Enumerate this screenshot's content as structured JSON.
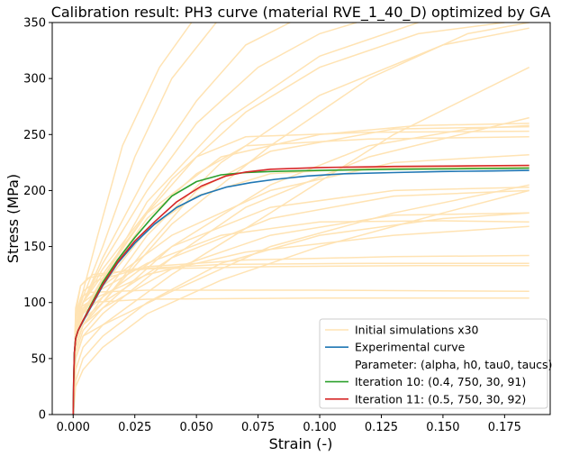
{
  "chart_data": {
    "type": "line",
    "title": "Calibration result: PH3 curve (material RVE_1_40_D) optimized by GA",
    "xlabel": "Strain (-)",
    "ylabel": "Stress (MPa)",
    "xlim": [
      -0.0085,
      0.1935
    ],
    "ylim": [
      0,
      350
    ],
    "xticks": [
      "0.000",
      "0.025",
      "0.050",
      "0.075",
      "0.100",
      "0.125",
      "0.150",
      "0.175"
    ],
    "yticks": [
      "0",
      "50",
      "100",
      "150",
      "200",
      "250",
      "300",
      "350"
    ],
    "grid": false,
    "legend_position": "lower-right",
    "legend": [
      {
        "label": "Initial simulations x30",
        "color": "#ffe3b3"
      },
      {
        "label": "Experimental curve",
        "color": "#1f77b4"
      },
      {
        "label": "Parameter: (alpha, h0, tau0, taucs)",
        "color": ""
      },
      {
        "label": "Iteration 10: (0.4, 750, 30, 91)",
        "color": "#2ca02c"
      },
      {
        "label": "Iteration 11: (0.5, 750, 30, 92)",
        "color": "#d62728"
      }
    ],
    "series": [
      {
        "name": "Experimental curve",
        "color": "#1f77b4",
        "x": [
          0,
          0.0002,
          0.0005,
          0.001,
          0.002,
          0.004,
          0.007,
          0.012,
          0.018,
          0.025,
          0.033,
          0.042,
          0.052,
          0.062,
          0.072,
          0.082,
          0.095,
          0.11,
          0.13,
          0.15,
          0.17,
          0.185
        ],
        "y": [
          0,
          30,
          55,
          68,
          75,
          83,
          95,
          115,
          135,
          153,
          170,
          185,
          196,
          203,
          207,
          210,
          213,
          215,
          216,
          217,
          217.5,
          218
        ]
      },
      {
        "name": "Iteration 10: (0.4, 750, 30, 91)",
        "color": "#2ca02c",
        "x": [
          0,
          0.0002,
          0.0005,
          0.001,
          0.002,
          0.004,
          0.007,
          0.012,
          0.018,
          0.025,
          0.032,
          0.04,
          0.05,
          0.06,
          0.07,
          0.08,
          0.1,
          0.13,
          0.16,
          0.185
        ],
        "y": [
          0,
          30,
          55,
          68,
          75,
          84,
          97,
          118,
          138,
          158,
          176,
          195,
          208,
          214,
          216,
          217,
          218,
          219,
          219.5,
          220
        ]
      },
      {
        "name": "Iteration 11: (0.5, 750, 30, 92)",
        "color": "#d62728",
        "x": [
          0,
          0.0002,
          0.0005,
          0.001,
          0.002,
          0.004,
          0.007,
          0.012,
          0.018,
          0.025,
          0.033,
          0.042,
          0.052,
          0.062,
          0.07,
          0.08,
          0.1,
          0.13,
          0.16,
          0.185
        ],
        "y": [
          0,
          30,
          55,
          68,
          75,
          84,
          96,
          116,
          136,
          155,
          172,
          190,
          204,
          213,
          216.5,
          219,
          220.5,
          221.5,
          222,
          222.5
        ]
      }
    ],
    "initial_simulations": {
      "color": "#ffe3b3",
      "curves": [
        {
          "x": [
            0,
            0.001,
            0.003,
            0.006,
            0.03,
            0.1,
            0.185
          ],
          "y": [
            0,
            80,
            96,
            100,
            103,
            104,
            104
          ]
        },
        {
          "x": [
            0,
            0.001,
            0.003,
            0.006,
            0.03,
            0.1,
            0.185
          ],
          "y": [
            0,
            85,
            104,
            109,
            111,
            111,
            110
          ]
        },
        {
          "x": [
            0,
            0.001,
            0.003,
            0.006,
            0.025,
            0.06,
            0.12,
            0.185
          ],
          "y": [
            0,
            90,
            115,
            122,
            130,
            134,
            135,
            135
          ]
        },
        {
          "x": [
            0,
            0.001,
            0.004,
            0.01,
            0.03,
            0.07,
            0.13,
            0.185
          ],
          "y": [
            0,
            85,
            110,
            120,
            132,
            138,
            141,
            142
          ]
        },
        {
          "x": [
            0,
            0.001,
            0.004,
            0.01,
            0.03,
            0.07,
            0.13,
            0.185
          ],
          "y": [
            0,
            75,
            95,
            105,
            125,
            145,
            160,
            168
          ]
        },
        {
          "x": [
            0,
            0.001,
            0.004,
            0.01,
            0.03,
            0.06,
            0.1,
            0.15,
            0.185
          ],
          "y": [
            0,
            80,
            100,
            110,
            135,
            160,
            172,
            173,
            172
          ]
        },
        {
          "x": [
            0,
            0.001,
            0.004,
            0.012,
            0.04,
            0.08,
            0.13,
            0.185
          ],
          "y": [
            0,
            60,
            80,
            95,
            130,
            160,
            178,
            180
          ]
        },
        {
          "x": [
            0,
            0.001,
            0.004,
            0.012,
            0.04,
            0.08,
            0.13,
            0.185
          ],
          "y": [
            0,
            50,
            70,
            80,
            110,
            150,
            180,
            205
          ]
        },
        {
          "x": [
            0,
            0.001,
            0.004,
            0.012,
            0.04,
            0.08,
            0.13,
            0.185
          ],
          "y": [
            0,
            70,
            90,
            105,
            150,
            185,
            200,
            203
          ]
        },
        {
          "x": [
            0,
            0.001,
            0.004,
            0.012,
            0.03,
            0.05,
            0.08,
            0.12,
            0.185
          ],
          "y": [
            0,
            70,
            90,
            115,
            165,
            195,
            215,
            220,
            221
          ]
        },
        {
          "x": [
            0,
            0.001,
            0.004,
            0.012,
            0.03,
            0.05,
            0.07,
            0.12,
            0.185
          ],
          "y": [
            0,
            70,
            90,
            120,
            175,
            215,
            240,
            246,
            248
          ]
        },
        {
          "x": [
            0,
            0.001,
            0.004,
            0.012,
            0.03,
            0.05,
            0.07,
            0.12,
            0.185
          ],
          "y": [
            0,
            70,
            92,
            122,
            180,
            230,
            248,
            252,
            253
          ]
        },
        {
          "x": [
            0,
            0.001,
            0.004,
            0.012,
            0.03,
            0.05,
            0.08,
            0.13,
            0.185
          ],
          "y": [
            0,
            60,
            80,
            100,
            150,
            200,
            235,
            255,
            257
          ]
        },
        {
          "x": [
            0,
            0.001,
            0.004,
            0.012,
            0.04,
            0.07,
            0.12,
            0.185
          ],
          "y": [
            0,
            50,
            70,
            90,
            140,
            185,
            230,
            265
          ]
        },
        {
          "x": [
            0,
            0.001,
            0.004,
            0.012,
            0.04,
            0.08,
            0.13,
            0.185
          ],
          "y": [
            0,
            40,
            60,
            80,
            125,
            180,
            250,
            310
          ]
        },
        {
          "x": [
            0,
            0.001,
            0.004,
            0.012,
            0.04,
            0.08,
            0.12,
            0.16,
            0.185
          ],
          "y": [
            0,
            60,
            80,
            100,
            170,
            240,
            300,
            340,
            350
          ]
        },
        {
          "x": [
            0,
            0.001,
            0.004,
            0.012,
            0.04,
            0.07,
            0.1,
            0.14,
            0.175
          ],
          "y": [
            0,
            80,
            100,
            130,
            210,
            270,
            310,
            340,
            350
          ]
        },
        {
          "x": [
            0,
            0.001,
            0.004,
            0.012,
            0.03,
            0.05,
            0.075,
            0.1,
            0.115
          ],
          "y": [
            0,
            80,
            100,
            135,
            200,
            260,
            310,
            340,
            350
          ]
        },
        {
          "x": [
            0,
            0.001,
            0.004,
            0.012,
            0.03,
            0.05,
            0.07,
            0.088
          ],
          "y": [
            0,
            80,
            100,
            140,
            215,
            280,
            330,
            350
          ]
        },
        {
          "x": [
            0,
            0.001,
            0.004,
            0.012,
            0.025,
            0.04,
            0.058
          ],
          "y": [
            0,
            85,
            105,
            150,
            230,
            300,
            350
          ]
        },
        {
          "x": [
            0,
            0.001,
            0.004,
            0.01,
            0.02,
            0.035,
            0.048
          ],
          "y": [
            0,
            90,
            110,
            160,
            240,
            310,
            350
          ]
        },
        {
          "x": [
            0,
            0.001,
            0.004,
            0.012,
            0.03,
            0.06,
            0.1,
            0.14
          ],
          "y": [
            0,
            70,
            90,
            120,
            190,
            260,
            320,
            350
          ]
        },
        {
          "x": [
            0,
            0.001,
            0.004,
            0.012,
            0.03,
            0.06,
            0.1,
            0.15,
            0.185
          ],
          "y": [
            0,
            60,
            80,
            105,
            160,
            225,
            285,
            330,
            345
          ]
        },
        {
          "x": [
            0,
            0.001,
            0.004,
            0.012,
            0.03,
            0.06,
            0.1,
            0.15,
            0.185
          ],
          "y": [
            0,
            30,
            50,
            70,
            100,
            135,
            160,
            175,
            180
          ]
        },
        {
          "x": [
            0,
            0.001,
            0.004,
            0.012,
            0.03,
            0.06,
            0.1,
            0.15,
            0.185
          ],
          "y": [
            0,
            25,
            40,
            60,
            90,
            120,
            150,
            180,
            200
          ]
        },
        {
          "x": [
            0,
            0.001,
            0.003,
            0.008,
            0.03,
            0.08,
            0.14,
            0.185
          ],
          "y": [
            0,
            95,
            115,
            125,
            130,
            132,
            133,
            133
          ]
        },
        {
          "x": [
            0,
            0.001,
            0.004,
            0.012,
            0.04,
            0.08,
            0.13,
            0.185
          ],
          "y": [
            0,
            70,
            95,
            115,
            160,
            200,
            225,
            232
          ]
        },
        {
          "x": [
            0,
            0.001,
            0.004,
            0.012,
            0.03,
            0.06,
            0.1,
            0.14,
            0.185
          ],
          "y": [
            0,
            75,
            100,
            125,
            180,
            230,
            250,
            258,
            260
          ]
        },
        {
          "x": [
            0,
            0.001,
            0.004,
            0.012,
            0.04,
            0.08,
            0.12,
            0.16,
            0.185
          ],
          "y": [
            0,
            55,
            75,
            95,
            150,
            205,
            240,
            255,
            258
          ]
        },
        {
          "x": [
            0,
            0.001,
            0.004,
            0.012,
            0.04,
            0.08,
            0.13,
            0.185
          ],
          "y": [
            0,
            65,
            85,
            100,
            140,
            175,
            195,
            200
          ]
        }
      ]
    }
  }
}
